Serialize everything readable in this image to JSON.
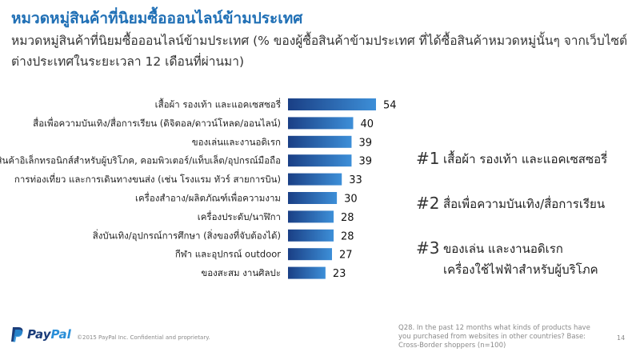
{
  "header": {
    "title": "หมวดหมู่สินค้าที่นิยมซื้อออนไลน์ข้ามประเทศ",
    "subtitle": "หมวดหมู่สินค้าที่นิยมซื้อออนไลน์ข้ามประเทศ (% ของผู้ซื้อสินค้าข้ามประเทศ ที่ได้ซื้อสินค้าหมวดหมู่นั้นๆ จากเว็บไซต์ต่างประเทศในระยะเวลา 12 เดือนที่ผ่านมา)"
  },
  "chart_data": {
    "type": "bar",
    "orientation": "horizontal",
    "categories": [
      "เสื้อผ้า รองเท้า และแอคเซสซอรี่",
      "สื่อเพื่อความบันเทิง/สื่อการเรียน (ดิจิตอล/ดาวน์โหลด/ออนไลน์)",
      "ของเล่นและงานอดิเรก",
      "สินค้าอิเล็กทรอนิกส์สำหรับผู้บริโภค, คอมพิวเตอร์/แท็บเล็ต/อุปกรณ์มือถือ",
      "การท่องเที่ยว และการเดินทางขนส่ง (เช่น โรงแรม ทัวร์ สายการบิน)",
      "เครื่องสำอาง/ผลิตภัณฑ์เพื่อความงาม",
      "เครื่องประดับ/นาฬิกา",
      "สิ่งบันเทิง/อุปกรณ์การศึกษา (สิ่งของที่จับต้องได้)",
      "กีฬา และอุปกรณ์ outdoor",
      "ของสะสม งานศิลปะ"
    ],
    "values": [
      54,
      40,
      39,
      39,
      33,
      30,
      28,
      28,
      27,
      23
    ],
    "value_labels": [
      "54",
      "40",
      "39",
      "39",
      "33",
      "30",
      "28",
      "28",
      "27",
      "23"
    ],
    "colors": {
      "bar_dark": "#1a3f85",
      "bar_light": "#3d8fd8"
    },
    "grid": false,
    "legend": "none"
  },
  "highlights": [
    {
      "rank": "#1",
      "lines": [
        "เสื้อผ้า รองเท้า และแอคเซสซอรี่"
      ]
    },
    {
      "rank": "#2",
      "lines": [
        "สื่อเพื่อความบันเทิง/สื่อการเรียน"
      ]
    },
    {
      "rank": "#3",
      "lines": [
        "ของเล่น และงานอดิเรก",
        "เครื่องใช้ไฟฟ้าสำหรับผู้บริโภค"
      ]
    }
  ],
  "footer": {
    "logo_pay": "Pay",
    "logo_pal": "Pal",
    "copyright": "©2015 PayPal Inc. Confidential and proprietary.",
    "source": "Q28. In the past 12 months what kinds of products have you purchased from websites in other countries? Base: Cross-Border shoppers (n=100)",
    "page_number": "14"
  },
  "theme": {
    "title_color": "#1f6fb5",
    "footer_text": "#8a8a8a"
  }
}
